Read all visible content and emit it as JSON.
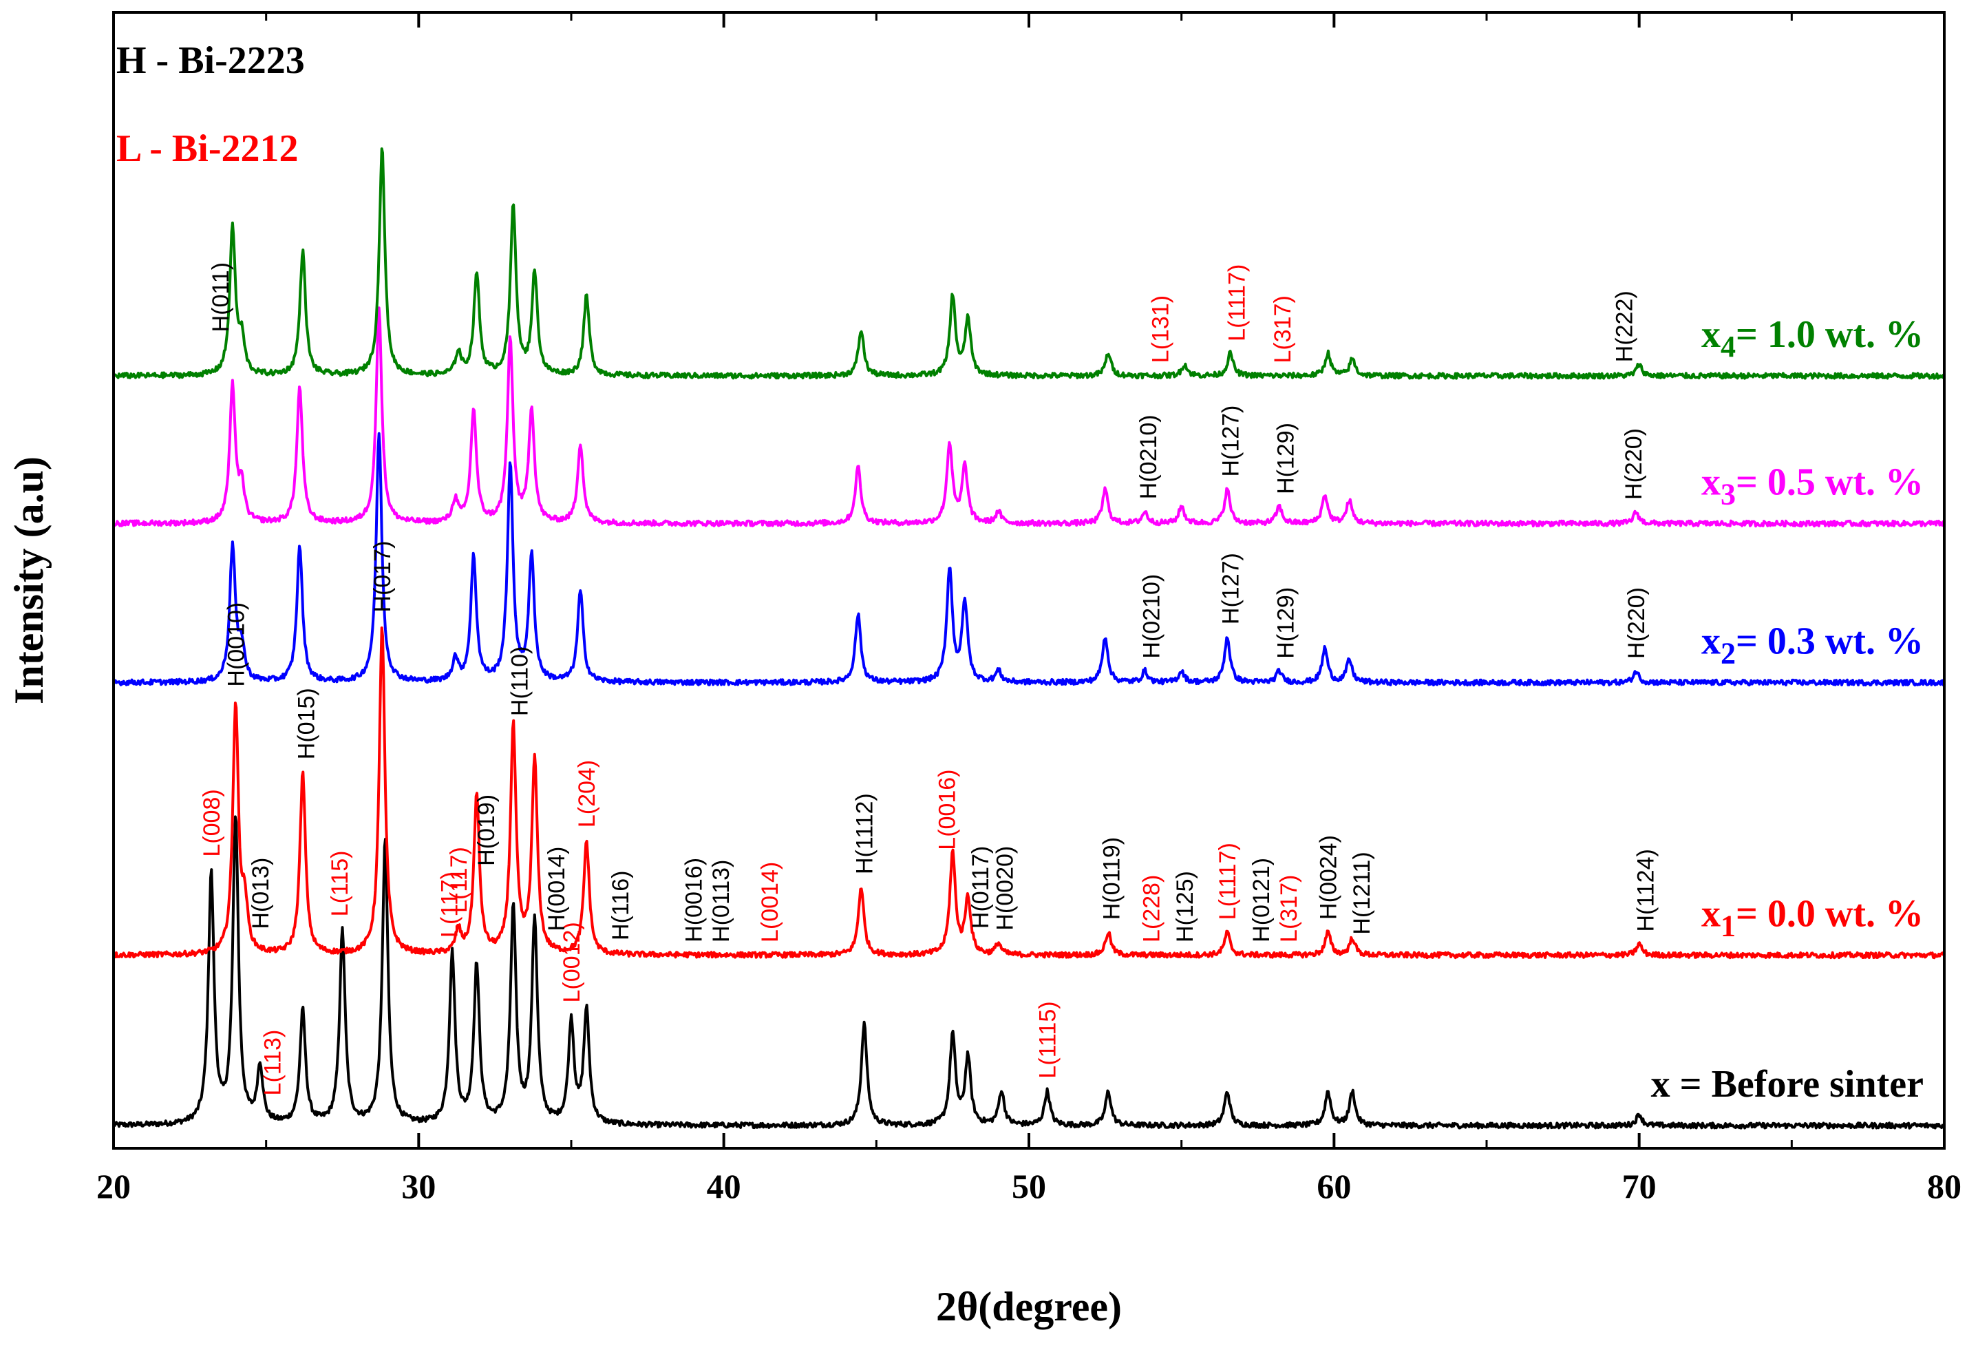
{
  "chart_data": {
    "type": "line",
    "title": "",
    "xlabel": "2θ(degree)",
    "ylabel": "Intensity (a.u)",
    "xlim": [
      20,
      80
    ],
    "xticks": [
      20,
      30,
      40,
      50,
      60,
      70,
      80
    ],
    "grid": false,
    "legend": [
      {
        "text": "H - Bi-2223",
        "color": "#000000"
      },
      {
        "text": "L - Bi-2212",
        "color": "#ff0000"
      }
    ],
    "series": [
      {
        "name": "x = Before sinter",
        "label_main": "x = Before sinter",
        "label_sub": "",
        "label_rest": "",
        "color": "#000000",
        "baseline": 0.02,
        "peaks": [
          [
            23.2,
            0.22
          ],
          [
            24.0,
            0.27
          ],
          [
            24.8,
            0.05
          ],
          [
            26.2,
            0.1
          ],
          [
            27.5,
            0.17
          ],
          [
            28.9,
            0.25
          ],
          [
            31.1,
            0.15
          ],
          [
            31.9,
            0.14
          ],
          [
            33.1,
            0.19
          ],
          [
            33.8,
            0.18
          ],
          [
            35.0,
            0.09
          ],
          [
            35.5,
            0.1
          ],
          [
            44.6,
            0.09
          ],
          [
            47.5,
            0.08
          ],
          [
            48.0,
            0.06
          ],
          [
            49.1,
            0.03
          ],
          [
            50.6,
            0.03
          ],
          [
            52.6,
            0.03
          ],
          [
            56.5,
            0.03
          ],
          [
            59.8,
            0.03
          ],
          [
            60.6,
            0.03
          ],
          [
            70.0,
            0.01
          ]
        ],
        "labels": [
          {
            "text": "L(008)",
            "x": 23.2,
            "color": "#ff0000"
          },
          {
            "text": "L(113)",
            "x": 25.2,
            "color": "#ff0000"
          },
          {
            "text": "L(115)",
            "x": 27.4,
            "color": "#ff0000"
          },
          {
            "text": "L(117)",
            "x": 31.0,
            "color": "#ff0000"
          },
          {
            "text": "L(0012)",
            "x": 35.0,
            "color": "#ff0000"
          },
          {
            "text": "L(1115)",
            "x": 50.6,
            "color": "#ff0000"
          }
        ]
      },
      {
        "name": "x1 = 0.0 wt. %",
        "label_main": "x",
        "label_sub": "1",
        "label_rest": "= 0.0 wt. %",
        "color": "#ff0000",
        "baseline": 0.17,
        "peaks": [
          [
            24.0,
            0.22
          ],
          [
            24.3,
            0.04
          ],
          [
            26.2,
            0.16
          ],
          [
            28.8,
            0.29
          ],
          [
            31.3,
            0.02
          ],
          [
            31.9,
            0.14
          ],
          [
            33.1,
            0.2
          ],
          [
            33.8,
            0.17
          ],
          [
            35.5,
            0.1
          ],
          [
            44.5,
            0.06
          ],
          [
            47.5,
            0.09
          ],
          [
            48.0,
            0.05
          ],
          [
            49.0,
            0.01
          ],
          [
            52.6,
            0.02
          ],
          [
            56.5,
            0.02
          ],
          [
            59.8,
            0.02
          ],
          [
            60.6,
            0.015
          ],
          [
            70.0,
            0.01
          ]
        ],
        "labels": [
          {
            "text": "H(0010)",
            "x": 24.0,
            "color": "#000000"
          },
          {
            "text": "H(013)",
            "x": 24.8,
            "color": "#000000"
          },
          {
            "text": "H(015)",
            "x": 26.3,
            "color": "#000000"
          },
          {
            "text": "H(017)",
            "x": 28.8,
            "color": "#000000"
          },
          {
            "text": "L(117)",
            "x": 31.3,
            "color": "#ff0000"
          },
          {
            "text": "H(019)",
            "x": 32.2,
            "color": "#000000"
          },
          {
            "text": "H(110)",
            "x": 33.3,
            "color": "#000000"
          },
          {
            "text": "H(0014)",
            "x": 34.5,
            "color": "#000000"
          },
          {
            "text": "L(204)",
            "x": 35.5,
            "color": "#ff0000"
          },
          {
            "text": "H(116)",
            "x": 36.6,
            "color": "#000000"
          },
          {
            "text": "H(0016)",
            "x": 39.0,
            "color": "#000000"
          },
          {
            "text": "H(0113)",
            "x": 39.9,
            "color": "#000000"
          },
          {
            "text": "L(0014)",
            "x": 41.5,
            "color": "#ff0000"
          },
          {
            "text": "H(1112)",
            "x": 44.6,
            "color": "#000000"
          },
          {
            "text": "L(0016)",
            "x": 47.3,
            "color": "#ff0000"
          },
          {
            "text": "H(0117)",
            "x": 48.4,
            "color": "#000000"
          },
          {
            "text": "H(0020)",
            "x": 49.2,
            "color": "#000000"
          },
          {
            "text": "H(0119)",
            "x": 52.7,
            "color": "#000000"
          },
          {
            "text": "L(228)",
            "x": 54.0,
            "color": "#ff0000"
          },
          {
            "text": "H(125)",
            "x": 55.1,
            "color": "#000000"
          },
          {
            "text": "L(1117)",
            "x": 56.5,
            "color": "#ff0000"
          },
          {
            "text": "H(0121)",
            "x": 57.6,
            "color": "#000000"
          },
          {
            "text": "L(317)",
            "x": 58.5,
            "color": "#ff0000"
          },
          {
            "text": "H(0024)",
            "x": 59.8,
            "color": "#000000"
          },
          {
            "text": "H(1211)",
            "x": 60.9,
            "color": "#000000"
          },
          {
            "text": "H(1124)",
            "x": 70.2,
            "color": "#000000"
          }
        ]
      },
      {
        "name": "x2 = 0.3 wt. %",
        "label_main": "x",
        "label_sub": "2",
        "label_rest": "= 0.3 wt. %",
        "color": "#0000ff",
        "baseline": 0.41,
        "peaks": [
          [
            23.9,
            0.12
          ],
          [
            24.2,
            0.03
          ],
          [
            26.1,
            0.12
          ],
          [
            28.7,
            0.22
          ],
          [
            31.2,
            0.02
          ],
          [
            31.8,
            0.11
          ],
          [
            33.0,
            0.19
          ],
          [
            33.7,
            0.11
          ],
          [
            35.3,
            0.08
          ],
          [
            44.4,
            0.06
          ],
          [
            47.4,
            0.1
          ],
          [
            47.9,
            0.07
          ],
          [
            49.0,
            0.01
          ],
          [
            52.5,
            0.04
          ],
          [
            53.8,
            0.01
          ],
          [
            55.0,
            0.01
          ],
          [
            56.5,
            0.04
          ],
          [
            58.2,
            0.01
          ],
          [
            59.7,
            0.03
          ],
          [
            60.5,
            0.02
          ],
          [
            69.9,
            0.01
          ]
        ],
        "labels": [
          {
            "text": "H(0210)",
            "x": 54.0,
            "color": "#000000"
          },
          {
            "text": "H(127)",
            "x": 56.6,
            "color": "#000000"
          },
          {
            "text": "H(129)",
            "x": 58.4,
            "color": "#000000"
          },
          {
            "text": "H(220)",
            "x": 69.9,
            "color": "#000000"
          }
        ]
      },
      {
        "name": "x3 = 0.5 wt. %",
        "label_main": "x",
        "label_sub": "3",
        "label_rest": "= 0.5 wt. %",
        "color": "#ff00ff",
        "baseline": 0.55,
        "peaks": [
          [
            23.9,
            0.12
          ],
          [
            24.2,
            0.03
          ],
          [
            26.1,
            0.12
          ],
          [
            28.7,
            0.19
          ],
          [
            31.2,
            0.02
          ],
          [
            31.8,
            0.1
          ],
          [
            33.0,
            0.16
          ],
          [
            33.7,
            0.1
          ],
          [
            35.3,
            0.07
          ],
          [
            44.4,
            0.05
          ],
          [
            47.4,
            0.07
          ],
          [
            47.9,
            0.05
          ],
          [
            49.0,
            0.01
          ],
          [
            52.5,
            0.03
          ],
          [
            53.8,
            0.01
          ],
          [
            55.0,
            0.015
          ],
          [
            56.5,
            0.03
          ],
          [
            58.2,
            0.015
          ],
          [
            59.7,
            0.025
          ],
          [
            60.5,
            0.02
          ],
          [
            69.9,
            0.01
          ]
        ],
        "labels": [
          {
            "text": "H(0210)",
            "x": 53.9,
            "color": "#000000"
          },
          {
            "text": "H(127)",
            "x": 56.6,
            "color": "#000000"
          },
          {
            "text": "H(129)",
            "x": 58.4,
            "color": "#000000"
          },
          {
            "text": "H(220)",
            "x": 69.8,
            "color": "#000000"
          }
        ]
      },
      {
        "name": "x4 = 1.0 wt. %",
        "label_main": "x",
        "label_sub": "4",
        "label_rest": "= 1.0 wt. %",
        "color": "#008000",
        "baseline": 0.68,
        "peaks": [
          [
            23.9,
            0.13
          ],
          [
            24.2,
            0.03
          ],
          [
            26.2,
            0.11
          ],
          [
            28.8,
            0.2
          ],
          [
            31.3,
            0.02
          ],
          [
            31.9,
            0.09
          ],
          [
            33.1,
            0.15
          ],
          [
            33.8,
            0.09
          ],
          [
            35.5,
            0.07
          ],
          [
            44.5,
            0.04
          ],
          [
            47.5,
            0.07
          ],
          [
            48.0,
            0.05
          ],
          [
            52.6,
            0.02
          ],
          [
            55.1,
            0.01
          ],
          [
            56.6,
            0.02
          ],
          [
            59.8,
            0.02
          ],
          [
            60.6,
            0.015
          ],
          [
            70.0,
            0.01
          ]
        ],
        "labels": [
          {
            "text": "H(011)",
            "x": 23.5,
            "color": "#000000"
          },
          {
            "text": "L(131)",
            "x": 54.3,
            "color": "#ff0000"
          },
          {
            "text": "L(1117)",
            "x": 56.8,
            "color": "#ff0000"
          },
          {
            "text": "L(317)",
            "x": 58.3,
            "color": "#ff0000"
          },
          {
            "text": "H(222)",
            "x": 69.5,
            "color": "#000000"
          }
        ]
      }
    ]
  }
}
